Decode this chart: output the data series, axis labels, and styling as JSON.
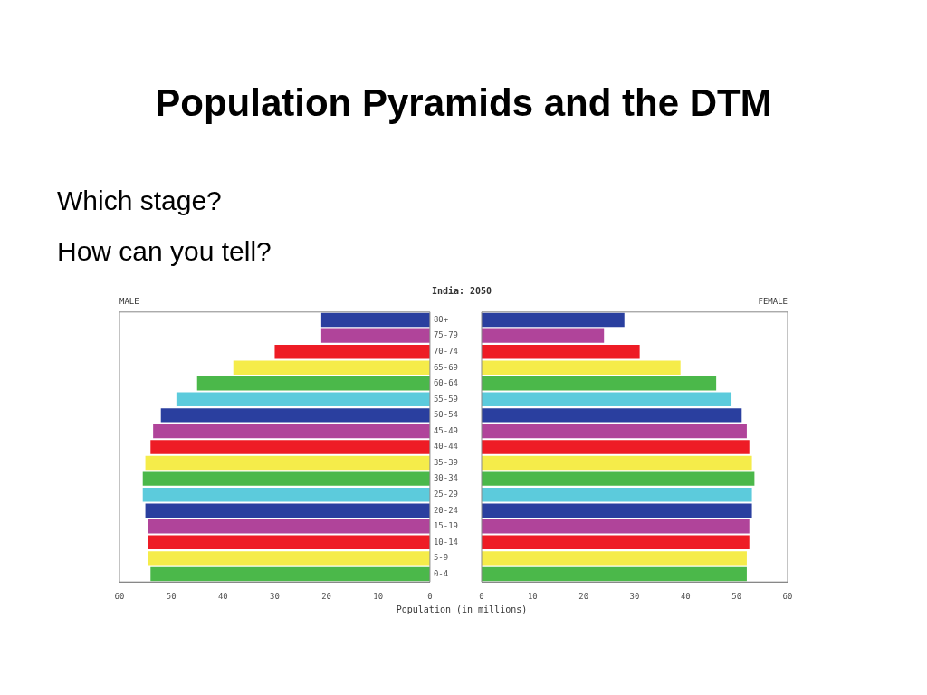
{
  "chart_data": [
    {
      "type": "bar",
      "orientation": "horizontal",
      "title": "MALE",
      "xlabel": "Population (in millions)",
      "annotations": [
        "Population Pyramids and the DTM",
        "Which stage?",
        "How can you tell?",
        "India: 2050"
      ],
      "categories": [
        "80+",
        "75-79",
        "70-74",
        "65-69",
        "60-64",
        "55-59",
        "50-54",
        "45-49",
        "40-44",
        "35-39",
        "30-34",
        "25-29",
        "20-24",
        "15-19",
        "10-14",
        "5-9",
        "0-4"
      ],
      "values": [
        21,
        21,
        30,
        38,
        45,
        49,
        52,
        53.5,
        54,
        55,
        55.5,
        55.5,
        55,
        54.5,
        54.5,
        54.5,
        54
      ],
      "colors": [
        "#2a3f9f",
        "#b0449a",
        "#ee1c25",
        "#f5ec4a",
        "#4bb84a",
        "#5ccbdc",
        "#2a3f9f",
        "#b0449a",
        "#ee1c25",
        "#f5ec4a",
        "#4bb84a",
        "#5ccbdc",
        "#2a3f9f",
        "#b0449a",
        "#ee1c25",
        "#f5ec4a",
        "#4bb84a"
      ],
      "xlim": [
        60,
        0
      ],
      "xticks": [
        0,
        10,
        20,
        30,
        40,
        50,
        60
      ],
      "grid": false,
      "legend": false
    },
    {
      "type": "bar",
      "orientation": "horizontal",
      "title": "FEMALE",
      "categories": [
        null,
        null,
        null,
        null,
        null,
        null,
        null,
        null,
        null,
        null,
        null,
        null,
        null,
        null,
        null,
        null,
        null
      ],
      "values": [
        28,
        24,
        31,
        39,
        46,
        49,
        51,
        52,
        52.5,
        53,
        53.5,
        53,
        53,
        52.5,
        52.5,
        52,
        52
      ],
      "colors": [
        "#2a3f9f",
        "#b0449a",
        "#ee1c25",
        "#f5ec4a",
        "#4bb84a",
        "#5ccbdc",
        "#2a3f9f",
        "#b0449a",
        "#ee1c25",
        "#f5ec4a",
        "#4bb84a",
        "#5ccbdc",
        "#2a3f9f",
        "#b0449a",
        "#ee1c25",
        "#f5ec4a",
        "#4bb84a"
      ],
      "xlim": [
        0,
        60
      ],
      "xticks": [
        0,
        10,
        20,
        30,
        40,
        50,
        60
      ],
      "tick_labels": "x",
      "grid": false,
      "legend": false
    }
  ]
}
